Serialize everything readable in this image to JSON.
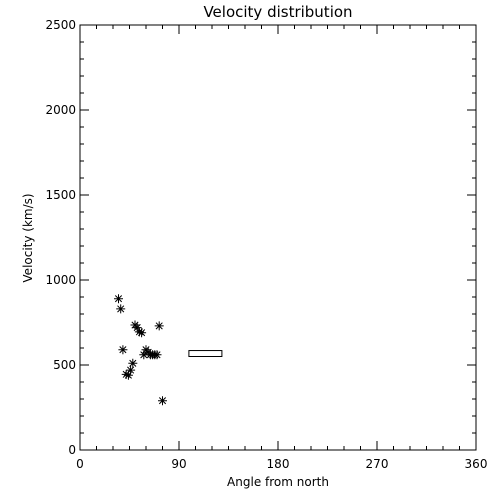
{
  "chart_data": {
    "type": "scatter",
    "title": "Velocity distribution",
    "xlabel": "Angle from north",
    "ylabel": "Velocity (km/s)",
    "xlim": [
      0,
      360
    ],
    "ylim": [
      0,
      2500
    ],
    "xticks": [
      0,
      90,
      180,
      270,
      360
    ],
    "yticks": [
      0,
      500,
      1000,
      1500,
      2000,
      2500
    ],
    "grid": false,
    "legend": "none",
    "marker": "asterisk",
    "colors": {
      "foreground": "#000000",
      "background": "#ffffff"
    },
    "series": [
      {
        "points": [
          {
            "x": 35,
            "y": 890
          },
          {
            "x": 37,
            "y": 830
          },
          {
            "x": 39,
            "y": 590
          },
          {
            "x": 42,
            "y": 445
          },
          {
            "x": 44,
            "y": 440
          },
          {
            "x": 46,
            "y": 470
          },
          {
            "x": 48,
            "y": 510
          },
          {
            "x": 50,
            "y": 735
          },
          {
            "x": 52,
            "y": 720
          },
          {
            "x": 54,
            "y": 695
          },
          {
            "x": 56,
            "y": 690
          },
          {
            "x": 58,
            "y": 560
          },
          {
            "x": 60,
            "y": 590
          },
          {
            "x": 62,
            "y": 575
          },
          {
            "x": 64,
            "y": 560
          },
          {
            "x": 66,
            "y": 560
          },
          {
            "x": 68,
            "y": 560
          },
          {
            "x": 70,
            "y": 560
          },
          {
            "x": 72,
            "y": 730
          },
          {
            "x": 75,
            "y": 290
          }
        ]
      }
    ],
    "annotations": [
      {
        "shape": "rectangle",
        "x_range": [
          99,
          129
        ],
        "y_range": [
          550,
          585
        ]
      }
    ]
  }
}
